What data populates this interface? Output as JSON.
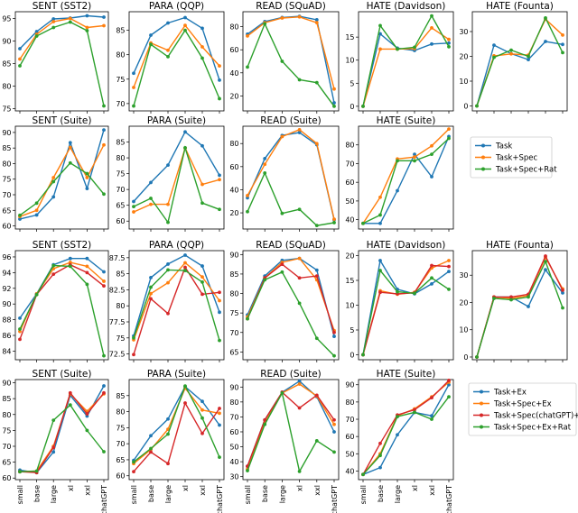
{
  "figure": {
    "x_categories": [
      "small",
      "base",
      "large",
      "xl",
      "xxl",
      "chatGPT"
    ]
  },
  "legends": {
    "top": [
      "Task",
      "Task+Spec",
      "Task+Spec+Rat"
    ],
    "bottom": [
      "Task+Ex",
      "Task+Spec+Ex",
      "Task+Spec(chatGPT)+Ex",
      "Task+Spec+Ex+Rat"
    ]
  },
  "colors": {
    "Task": "#1f77b4",
    "Task+Spec": "#ff7f0e",
    "Task+Spec+Rat": "#2ca02c",
    "Task+Ex": "#1f77b4",
    "Task+Spec+Ex": "#ff7f0e",
    "Task+Spec(chatGPT)+Ex": "#d62728",
    "Task+Spec+Ex+Rat": "#2ca02c"
  },
  "chart_data": [
    {
      "type": "line",
      "title": "SENT (SST2)",
      "categories": [
        "small",
        "base",
        "large",
        "xl",
        "xxl",
        "chatGPT"
      ],
      "ylim": [
        74.5,
        96.5
      ],
      "yticks": [
        75,
        80,
        85,
        90,
        95
      ],
      "series": [
        {
          "name": "Task",
          "values": [
            88.3,
            92.1,
            94.9,
            95.1,
            95.6,
            95.3
          ]
        },
        {
          "name": "Task+Spec",
          "values": [
            86.0,
            91.5,
            94.3,
            95.0,
            93.0,
            93.4
          ]
        },
        {
          "name": "Task+Spec+Rat",
          "values": [
            84.5,
            91.1,
            93.0,
            94.2,
            92.3,
            75.6
          ]
        }
      ]
    },
    {
      "type": "line",
      "title": "PARA (QQP)",
      "categories": [
        "small",
        "base",
        "large",
        "xl",
        "xxl",
        "chatGPT"
      ],
      "ylim": [
        68.5,
        88.8
      ],
      "yticks": [
        70,
        75,
        80,
        85
      ],
      "series": [
        {
          "name": "Task",
          "values": [
            76.2,
            84.0,
            86.5,
            87.6,
            85.4,
            74.8
          ]
        },
        {
          "name": "Task+Spec",
          "values": [
            73.3,
            82.4,
            80.9,
            86.0,
            81.6,
            77.7
          ]
        },
        {
          "name": "Task+Spec+Rat",
          "values": [
            69.5,
            82.1,
            79.6,
            85.0,
            79.3,
            71.0
          ]
        }
      ]
    },
    {
      "type": "line",
      "title": "READ (SQuAD)",
      "categories": [
        "small",
        "base",
        "large",
        "xl",
        "xxl",
        "chatGPT"
      ],
      "ylim": [
        7,
        93
      ],
      "yticks": [
        20,
        40,
        60,
        80
      ],
      "series": [
        {
          "name": "Task",
          "values": [
            73.5,
            84.5,
            88.0,
            89.0,
            86.0,
            14.0
          ]
        },
        {
          "name": "Task+Spec",
          "values": [
            72.0,
            83.5,
            87.5,
            88.5,
            83.5,
            26.0
          ]
        },
        {
          "name": "Task+Spec+Rat",
          "values": [
            45.0,
            82.5,
            50.0,
            34.0,
            31.5,
            11.0
          ]
        }
      ]
    },
    {
      "type": "line",
      "title": "HATE (Davidson)",
      "categories": [
        "small",
        "base",
        "large",
        "xl",
        "xxl",
        "chatGPT"
      ],
      "ylim": [
        -1,
        20.5
      ],
      "yticks": [
        0,
        5,
        10,
        15
      ],
      "series": [
        {
          "name": "Task",
          "values": [
            0,
            15.7,
            12.6,
            12.1,
            13.5,
            13.7
          ]
        },
        {
          "name": "Task+Spec",
          "values": [
            0,
            12.4,
            12.4,
            12.5,
            17.0,
            14.5
          ]
        },
        {
          "name": "Task+Spec+Rat",
          "values": [
            0,
            17.5,
            12.4,
            12.8,
            19.6,
            12.9
          ]
        }
      ]
    },
    {
      "type": "line",
      "title": "HATE (Founta)",
      "categories": [
        "small",
        "base",
        "large",
        "xl",
        "xxl",
        "chatGPT"
      ],
      "ylim": [
        -2,
        38
      ],
      "yticks": [
        0,
        10,
        20,
        30
      ],
      "series": [
        {
          "name": "Task",
          "values": [
            0,
            24.5,
            21.1,
            18.7,
            26.0,
            24.8
          ]
        },
        {
          "name": "Task+Spec",
          "values": [
            0,
            20.2,
            21.0,
            20.5,
            35.0,
            28.6
          ]
        },
        {
          "name": "Task+Spec+Rat",
          "values": [
            0,
            19.6,
            22.5,
            20.0,
            35.5,
            21.5
          ]
        }
      ]
    },
    {
      "type": "line",
      "title": "SENT (Suite)",
      "categories": [
        "small",
        "base",
        "large",
        "xl",
        "xxl",
        "chatGPT"
      ],
      "ylim": [
        59,
        92
      ],
      "yticks": [
        60,
        65,
        70,
        75,
        80,
        85,
        90
      ],
      "series": [
        {
          "name": "Task",
          "values": [
            62.2,
            63.5,
            69.3,
            86.7,
            72.0,
            90.8
          ]
        },
        {
          "name": "Task+Spec",
          "values": [
            63.0,
            65.0,
            75.5,
            85.2,
            75.5,
            86.0
          ]
        },
        {
          "name": "Task+Spec+Rat",
          "values": [
            63.4,
            67.3,
            74.2,
            80.2,
            76.8,
            70.2
          ]
        }
      ]
    },
    {
      "type": "line",
      "title": "PARA (Suite)",
      "categories": [
        "small",
        "base",
        "large",
        "xl",
        "xxl",
        "chatGPT"
      ],
      "ylim": [
        57.5,
        90
      ],
      "yticks": [
        60,
        65,
        70,
        75,
        80,
        85
      ],
      "series": [
        {
          "name": "Task",
          "values": [
            66.2,
            72.2,
            77.7,
            88.2,
            83.8,
            74.5
          ]
        },
        {
          "name": "Task+Spec",
          "values": [
            62.9,
            65.3,
            65.3,
            83.1,
            71.6,
            73.1
          ]
        },
        {
          "name": "Task+Spec+Rat",
          "values": [
            64.6,
            67.2,
            59.6,
            83.2,
            65.7,
            63.7
          ]
        }
      ]
    },
    {
      "type": "line",
      "title": "READ (Suite)",
      "categories": [
        "small",
        "base",
        "large",
        "xl",
        "xxl",
        "chatGPT"
      ],
      "ylim": [
        6,
        95
      ],
      "yticks": [
        20,
        40,
        60,
        80
      ],
      "series": [
        {
          "name": "Task",
          "values": [
            33.0,
            67.0,
            87.0,
            89.5,
            79.0,
            14.0
          ]
        },
        {
          "name": "Task+Spec",
          "values": [
            35.0,
            62.0,
            86.0,
            92.0,
            80.0,
            14.5
          ]
        },
        {
          "name": "Task+Spec+Rat",
          "values": [
            21.0,
            54.5,
            19.5,
            23.0,
            9.0,
            11.5
          ]
        }
      ]
    },
    {
      "type": "line",
      "title": "HATE (Suite)",
      "categories": [
        "small",
        "base",
        "large",
        "xl",
        "xxl",
        "chatGPT"
      ],
      "ylim": [
        35,
        90
      ],
      "yticks": [
        40,
        50,
        60,
        70,
        80
      ],
      "series": [
        {
          "name": "Task",
          "values": [
            38.0,
            38.0,
            55.5,
            75.0,
            63.0,
            84.5
          ]
        },
        {
          "name": "Task+Spec",
          "values": [
            38.0,
            52.0,
            72.5,
            73.5,
            79.5,
            88.5
          ]
        },
        {
          "name": "Task+Spec+Rat",
          "values": [
            38.0,
            42.5,
            71.5,
            71.5,
            75.0,
            83.5
          ]
        }
      ]
    },
    {
      "type": "line",
      "title": "SENT (SST2)",
      "categories": [
        "small",
        "base",
        "large",
        "xl",
        "xxl",
        "chatGPT"
      ],
      "ylim": [
        82.9,
        96.8
      ],
      "yticks": [
        84,
        86,
        88,
        90,
        92,
        94,
        96
      ],
      "series": [
        {
          "name": "Task+Ex",
          "values": [
            88.2,
            91.3,
            95.0,
            95.8,
            95.8,
            94.1
          ]
        },
        {
          "name": "Task+Spec+Ex",
          "values": [
            86.5,
            91.3,
            94.5,
            95.3,
            94.8,
            92.9
          ]
        },
        {
          "name": "Task+Spec(chatGPT)+Ex",
          "values": [
            85.5,
            91.2,
            93.8,
            95.0,
            94.0,
            92.3
          ]
        },
        {
          "name": "Task+Spec+Ex+Rat",
          "values": [
            86.8,
            91.2,
            94.9,
            94.8,
            92.5,
            83.4
          ]
        }
      ]
    },
    {
      "type": "line",
      "title": "PARA (QQP)",
      "categories": [
        "small",
        "base",
        "large",
        "xl",
        "xxl",
        "chatGPT"
      ],
      "ylim": [
        71.6,
        88.6
      ],
      "yticks": [
        72.5,
        75.0,
        77.5,
        80.0,
        82.5,
        85.0,
        87.5
      ],
      "series": [
        {
          "name": "Task+Ex",
          "values": [
            75.3,
            84.4,
            86.5,
            87.9,
            86.2,
            79.0
          ]
        },
        {
          "name": "Task+Spec+Ex",
          "values": [
            74.7,
            81.9,
            83.6,
            86.7,
            84.5,
            80.8
          ]
        },
        {
          "name": "Task+Spec(chatGPT)+Ex",
          "values": [
            72.4,
            81.1,
            78.8,
            86.0,
            81.8,
            82.1
          ]
        },
        {
          "name": "Task+Spec+Ex+Rat",
          "values": [
            75.0,
            82.9,
            85.6,
            85.5,
            83.7,
            74.6
          ]
        }
      ]
    },
    {
      "type": "line",
      "title": "READ (SQuAD)",
      "categories": [
        "small",
        "base",
        "large",
        "xl",
        "xxl",
        "chatGPT"
      ],
      "ylim": [
        63,
        91
      ],
      "yticks": [
        65,
        70,
        75,
        80,
        85,
        90
      ],
      "series": [
        {
          "name": "Task+Ex",
          "values": [
            74.5,
            84.5,
            88.5,
            89.0,
            86.0,
            69.0
          ]
        },
        {
          "name": "Task+Spec+Ex",
          "values": [
            74.0,
            84.0,
            88.0,
            89.0,
            83.5,
            70.5
          ]
        },
        {
          "name": "Task+Spec(chatGPT)+Ex",
          "values": [
            73.5,
            84.0,
            87.5,
            84.0,
            84.5,
            70.0
          ]
        },
        {
          "name": "Task+Spec+Ex+Rat",
          "values": [
            73.5,
            83.5,
            85.5,
            77.5,
            68.5,
            64.0
          ]
        }
      ]
    },
    {
      "type": "line",
      "title": "HATE (Davidson)",
      "categories": [
        "small",
        "base",
        "large",
        "xl",
        "xxl",
        "chatGPT"
      ],
      "ylim": [
        -1,
        21
      ],
      "yticks": [
        0,
        5,
        10,
        15,
        20
      ],
      "series": [
        {
          "name": "Task+Ex",
          "values": [
            0,
            19.0,
            13.2,
            12.3,
            14.3,
            16.8
          ]
        },
        {
          "name": "Task+Spec+Ex",
          "values": [
            0,
            12.9,
            12.2,
            12.6,
            17.5,
            19.0
          ]
        },
        {
          "name": "Task+Spec(chatGPT)+Ex",
          "values": [
            0,
            12.6,
            12.3,
            12.5,
            18.0,
            17.8
          ]
        },
        {
          "name": "Task+Spec+Ex+Rat",
          "values": [
            0,
            17.0,
            12.7,
            12.4,
            15.5,
            13.2
          ]
        }
      ]
    },
    {
      "type": "line",
      "title": "HATE (Founta)",
      "categories": [
        "small",
        "base",
        "large",
        "xl",
        "xxl",
        "chatGPT"
      ],
      "ylim": [
        -1,
        39
      ],
      "yticks": [
        0,
        10,
        20,
        30
      ],
      "series": [
        {
          "name": "Task+Ex",
          "values": [
            0,
            22.0,
            22.0,
            18.5,
            32.0,
            23.5
          ]
        },
        {
          "name": "Task+Spec+Ex",
          "values": [
            0,
            22.0,
            21.5,
            22.5,
            36.5,
            25.0
          ]
        },
        {
          "name": "Task+Spec(chatGPT)+Ex",
          "values": [
            0,
            22.0,
            22.0,
            23.0,
            37.0,
            24.5
          ]
        },
        {
          "name": "Task+Spec+Ex+Rat",
          "values": [
            0,
            21.5,
            21.0,
            22.0,
            35.0,
            18.0
          ]
        }
      ]
    },
    {
      "type": "line",
      "title": "SENT (Suite)",
      "categories": [
        "small",
        "base",
        "large",
        "xl",
        "xxl",
        "chatGPT"
      ],
      "ylim": [
        59.5,
        91
      ],
      "yticks": [
        60,
        65,
        70,
        75,
        80,
        85,
        90
      ],
      "series": [
        {
          "name": "Task+Ex",
          "values": [
            62.5,
            61.7,
            68.2,
            86.0,
            79.5,
            89.0
          ]
        },
        {
          "name": "Task+Spec+Ex",
          "values": [
            62.0,
            62.2,
            70.0,
            86.5,
            81.0,
            86.5
          ]
        },
        {
          "name": "Task+Spec(chatGPT)+Ex",
          "values": [
            62.0,
            61.7,
            69.6,
            86.8,
            80.2,
            86.8
          ]
        },
        {
          "name": "Task+Spec+Ex+Rat",
          "values": [
            62.0,
            62.2,
            78.2,
            83.0,
            75.0,
            68.3
          ]
        }
      ]
    },
    {
      "type": "line",
      "title": "PARA (Suite)",
      "categories": [
        "small",
        "base",
        "large",
        "xl",
        "xxl",
        "chatGPT"
      ],
      "ylim": [
        58.8,
        90
      ],
      "yticks": [
        60,
        65,
        70,
        75,
        80,
        85
      ],
      "series": [
        {
          "name": "Task+Ex",
          "values": [
            64.8,
            72.5,
            77.7,
            87.8,
            83.2,
            75.8
          ]
        },
        {
          "name": "Task+Spec+Ex",
          "values": [
            63.8,
            68.2,
            74.5,
            87.3,
            80.5,
            79.5
          ]
        },
        {
          "name": "Task+Spec(chatGPT)+Ex",
          "values": [
            61.3,
            67.4,
            63.8,
            82.7,
            73.2,
            81.0
          ]
        },
        {
          "name": "Task+Spec+Ex+Rat",
          "values": [
            64.3,
            68.5,
            73.0,
            88.0,
            78.0,
            65.8
          ]
        }
      ]
    },
    {
      "type": "line",
      "title": "READ (Suite)",
      "categories": [
        "small",
        "base",
        "large",
        "xl",
        "xxl",
        "chatGPT"
      ],
      "ylim": [
        28,
        95
      ],
      "yticks": [
        30,
        40,
        50,
        60,
        70,
        80,
        90
      ],
      "series": [
        {
          "name": "Task+Ex",
          "values": [
            37.0,
            68.0,
            86.5,
            94.0,
            83.5,
            60.0
          ]
        },
        {
          "name": "Task+Spec+Ex",
          "values": [
            35.0,
            66.0,
            86.0,
            92.0,
            84.0,
            65.0
          ]
        },
        {
          "name": "Task+Spec(chatGPT)+Ex",
          "values": [
            37.0,
            68.0,
            86.5,
            76.0,
            84.5,
            68.0
          ]
        },
        {
          "name": "Task+Spec+Ex+Rat",
          "values": [
            34.0,
            65.0,
            86.0,
            33.5,
            54.0,
            46.5
          ]
        }
      ]
    },
    {
      "type": "line",
      "title": "HATE (Suite)",
      "categories": [
        "small",
        "base",
        "large",
        "xl",
        "xxl",
        "chatGPT"
      ],
      "ylim": [
        35,
        93
      ],
      "yticks": [
        40,
        50,
        60,
        70,
        80,
        90
      ],
      "series": [
        {
          "name": "Task+Ex",
          "values": [
            38.0,
            42.0,
            61.0,
            74.0,
            72.0,
            90.0
          ]
        },
        {
          "name": "Task+Spec+Ex",
          "values": [
            38.0,
            50.0,
            72.0,
            76.0,
            83.0,
            91.5
          ]
        },
        {
          "name": "Task+Spec(chatGPT)+Ex",
          "values": [
            38.0,
            56.0,
            72.5,
            75.5,
            82.5,
            92.5
          ]
        },
        {
          "name": "Task+Spec+Ex+Rat",
          "values": [
            38.0,
            49.0,
            71.5,
            74.0,
            70.0,
            83.0
          ]
        }
      ]
    }
  ]
}
